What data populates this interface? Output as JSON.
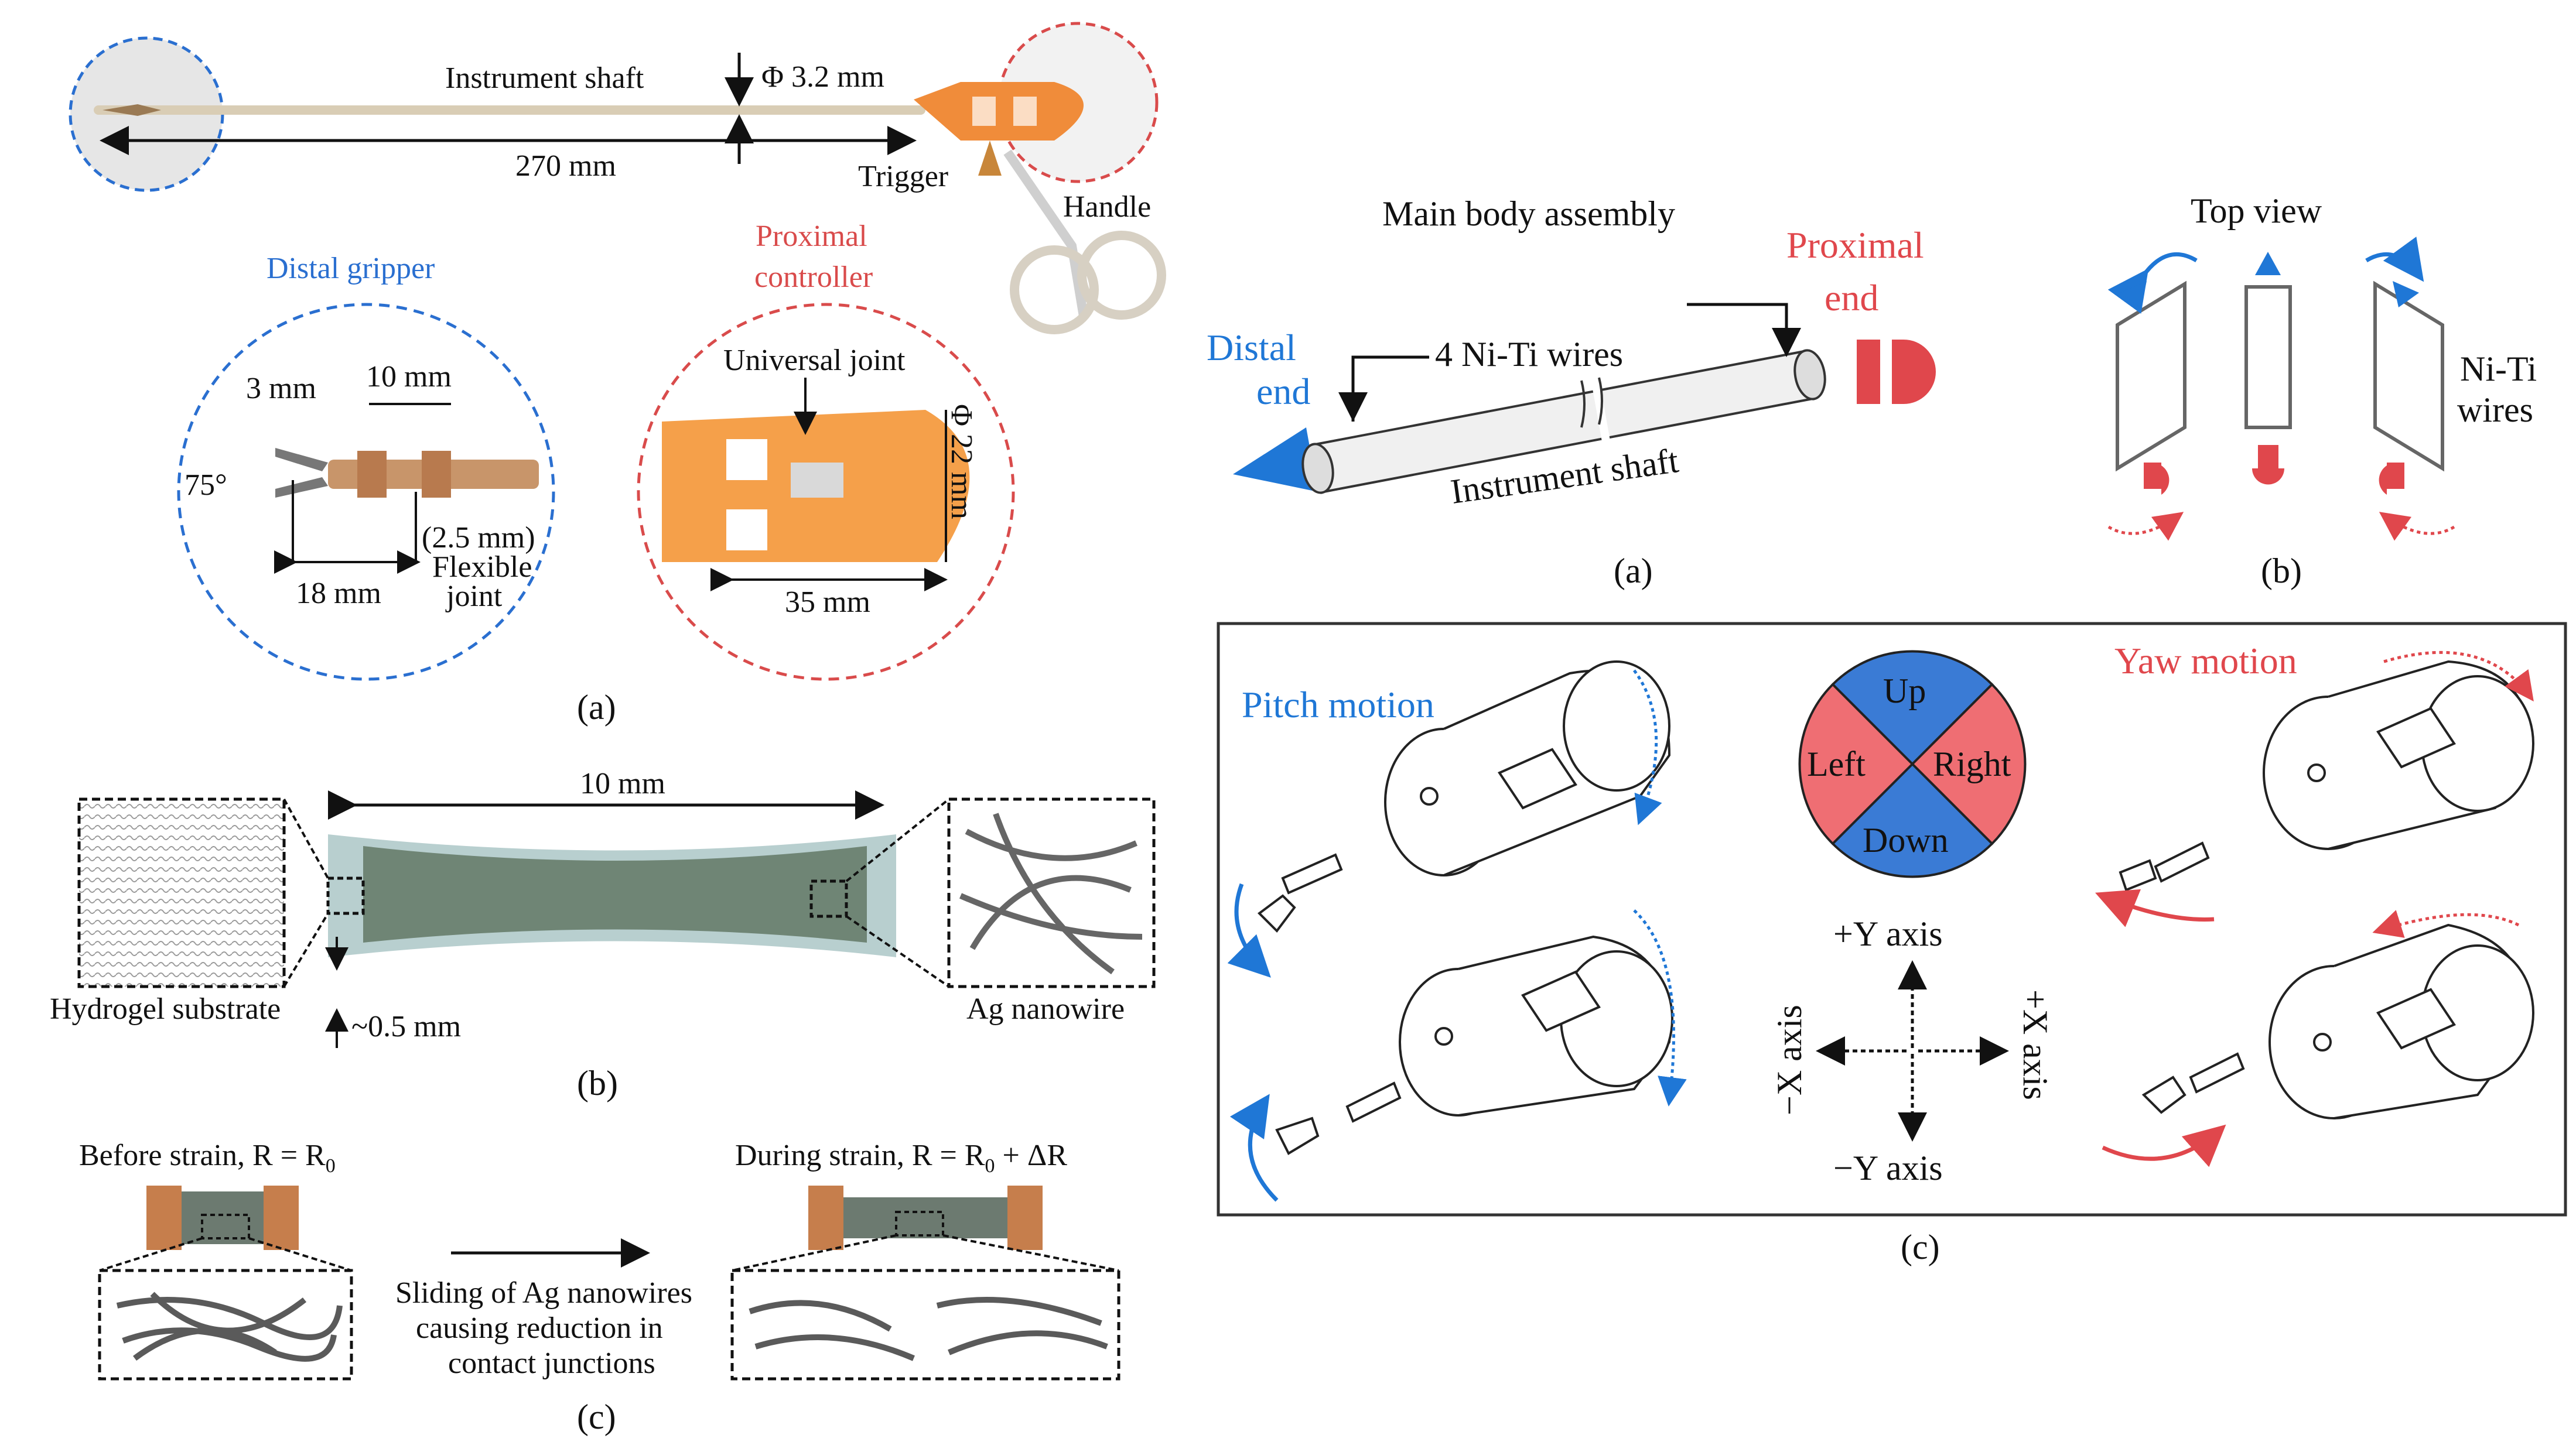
{
  "panel_left": {
    "a": {
      "instrument_shaft": "Instrument shaft",
      "diameter": "Φ 3.2 mm",
      "length": "270 mm",
      "trigger": "Trigger",
      "handle": "Handle",
      "distal_gripper": "Distal gripper",
      "proximal_controller_1": "Proximal",
      "proximal_controller_2": "controller",
      "dim_3mm": "3 mm",
      "dim_10mm": "10 mm",
      "angle_75": "75°",
      "dim_18mm": "18 mm",
      "dim_2_5mm": "(2.5 mm)",
      "flexible_1": "Flexible",
      "flexible_2": "joint",
      "universal_joint": "Universal joint",
      "dim_22mm": "Φ 22 mm",
      "dim_35mm": "35 mm",
      "caption": "(a)"
    },
    "b": {
      "width": "10 mm",
      "thickness": "~0.5 mm",
      "hydrogel": "Hydrogel substrate",
      "nanowire": "Ag nanowire",
      "caption": "(b)"
    },
    "c": {
      "before": "Before strain, R = R",
      "before_sub": "0",
      "during": "During strain, R = R",
      "during_sub": "0",
      "during_tail": " + ΔR",
      "note_1": "Sliding  of Ag nanowires",
      "note_2": "causing reduction in",
      "note_3": "contact junctions",
      "caption": "(c)"
    }
  },
  "panel_right": {
    "a": {
      "title": "Main  body assembly",
      "wires": "4 Ni-Ti  wires",
      "distal_1": "Distal",
      "distal_2": "end",
      "proximal_1": "Proximal",
      "proximal_2": "end",
      "shaft": "Instrument  shaft",
      "caption": "(a)"
    },
    "b": {
      "title": "Top view",
      "wires_1": "Ni-Ti",
      "wires_2": "wires",
      "caption": "(b)"
    },
    "c": {
      "pitch": "Pitch motion",
      "yaw": "Yaw motion",
      "up": "Up",
      "left": "Left",
      "right": "Right",
      "down": "Down",
      "plus_y": "+Y axis",
      "minus_y": "−Y axis",
      "minus_x": "−X axis",
      "plus_x": "+X axis",
      "caption": "(c)"
    }
  },
  "colors": {
    "blue": "#1f77d6",
    "red": "#e0474c",
    "quadrant_blue": "#3a7bd5",
    "quadrant_red": "#ef6e73",
    "orange": "#f5a04a"
  }
}
